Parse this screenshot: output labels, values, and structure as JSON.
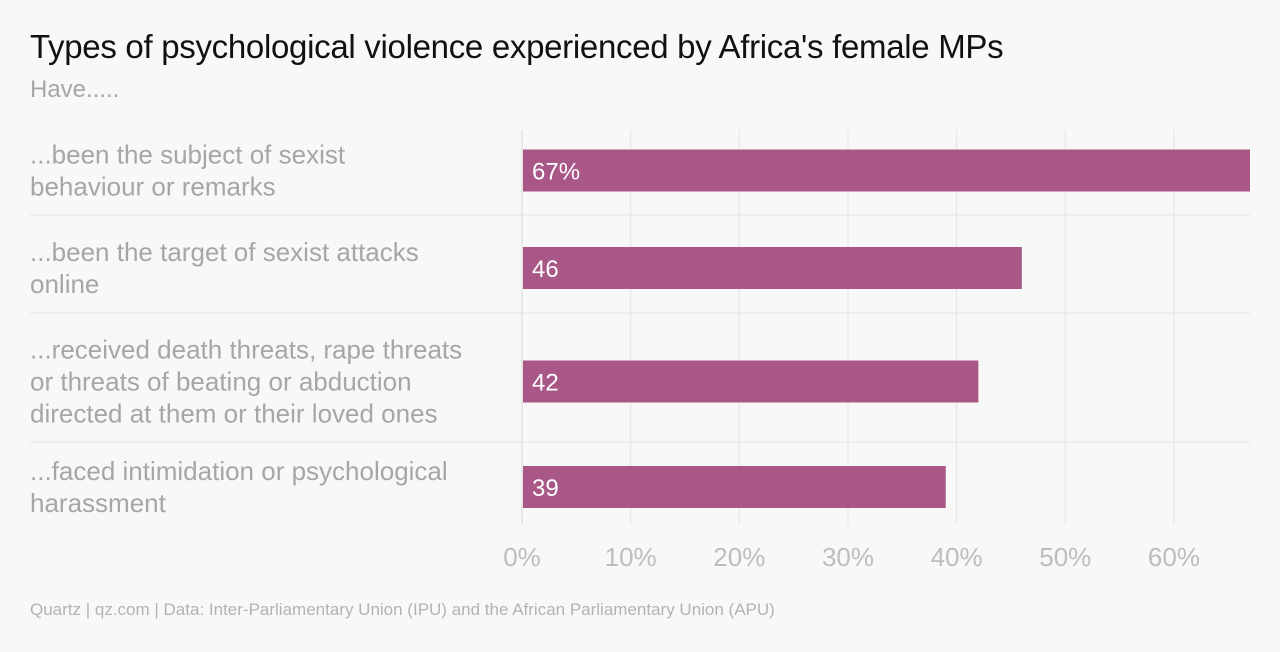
{
  "chart_data": {
    "type": "bar",
    "orientation": "horizontal",
    "title": "Types of psychological violence experienced by Africa's female MPs",
    "subtitle": "Have.....",
    "categories": [
      "...been the subject of sexist behaviour or remarks",
      "...been the target of sexist attacks online",
      "...received death threats, rape threats or threats of beating or abduction directed at them or their loved ones",
      "...faced intimidation or psychological harassment"
    ],
    "category_lines": [
      [
        "...been the subject of sexist",
        "behaviour or remarks"
      ],
      [
        "...been the target of sexist attacks",
        "online"
      ],
      [
        "...received death threats, rape threats",
        "or threats of beating or abduction",
        "directed at them or their loved ones"
      ],
      [
        "...faced intimidation or psychological",
        "harassment"
      ]
    ],
    "values": [
      67,
      46,
      42,
      39
    ],
    "value_labels": [
      "67%",
      "46",
      "42",
      "39"
    ],
    "xlim": [
      0,
      67
    ],
    "x_ticks": [
      0,
      10,
      20,
      30,
      40,
      50,
      60
    ],
    "x_tick_labels": [
      "0%",
      "10%",
      "20%",
      "30%",
      "40%",
      "50%",
      "60%"
    ],
    "grid": true,
    "legend": "none",
    "bar_color": "#a85786",
    "source": "Quartz | qz.com | Data: Inter-Parliamentary Union (IPU) and the African Parliamentary Union (APU)"
  }
}
